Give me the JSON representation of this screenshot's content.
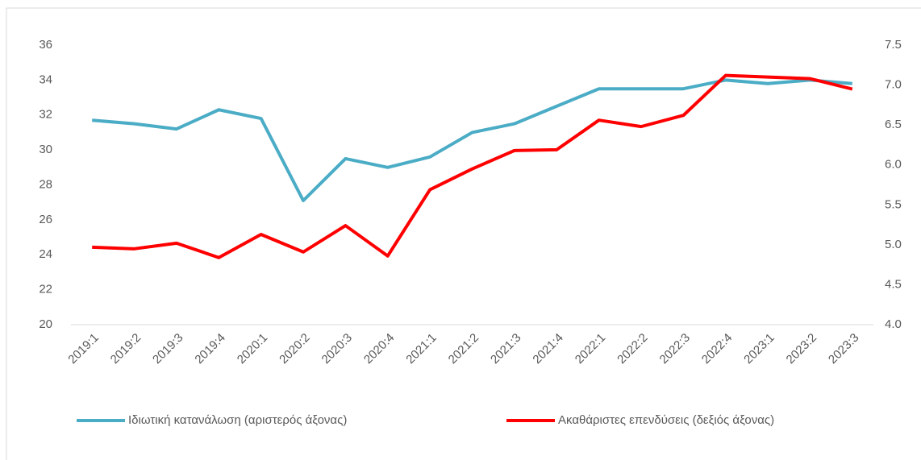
{
  "chart_data": {
    "type": "line",
    "categories": [
      "2019:1",
      "2019:2",
      "2019:3",
      "2019:4",
      "2020:1",
      "2020:2",
      "2020:3",
      "2020:4",
      "2021:1",
      "2021:2",
      "2021:3",
      "2021:4",
      "2022:1",
      "2022:2",
      "2022:3",
      "2022:4",
      "2023:1",
      "2023:2",
      "2023:3"
    ],
    "series": [
      {
        "name": "Ιδιωτική κατανάλωση (αριστερός άξονας)",
        "color": "#4bacc6",
        "values": [
          31.7,
          31.5,
          31.2,
          32.3,
          31.8,
          27.1,
          29.5,
          29.0,
          29.6,
          31.0,
          31.5,
          32.5,
          33.5,
          33.5,
          33.5,
          34.0,
          33.8,
          34.0,
          33.8
        ]
      },
      {
        "name": "Ακαθάριστες επενδύσεις (δεξιός άξονας)",
        "color": "#ff0000",
        "axis": "y2",
        "values": [
          4.97,
          4.95,
          5.02,
          4.84,
          5.13,
          4.91,
          5.24,
          4.86,
          5.69,
          5.95,
          6.18,
          6.19,
          6.56,
          6.48,
          6.62,
          7.12,
          7.1,
          7.08,
          6.95
        ]
      }
    ],
    "ylim": [
      20,
      36
    ],
    "yticks": [
      20,
      22,
      24,
      26,
      28,
      30,
      32,
      34,
      36
    ],
    "y2lim": [
      4,
      7.5
    ],
    "y2ticks": [
      {
        "value": 4,
        "label": "4.0"
      },
      4.5,
      {
        "value": 5,
        "label": "5.0"
      },
      5.5,
      {
        "value": 6,
        "label": "6.0"
      },
      6.5,
      {
        "value": 7,
        "label": "7.0"
      },
      7.5
    ],
    "legend": "bottom"
  }
}
